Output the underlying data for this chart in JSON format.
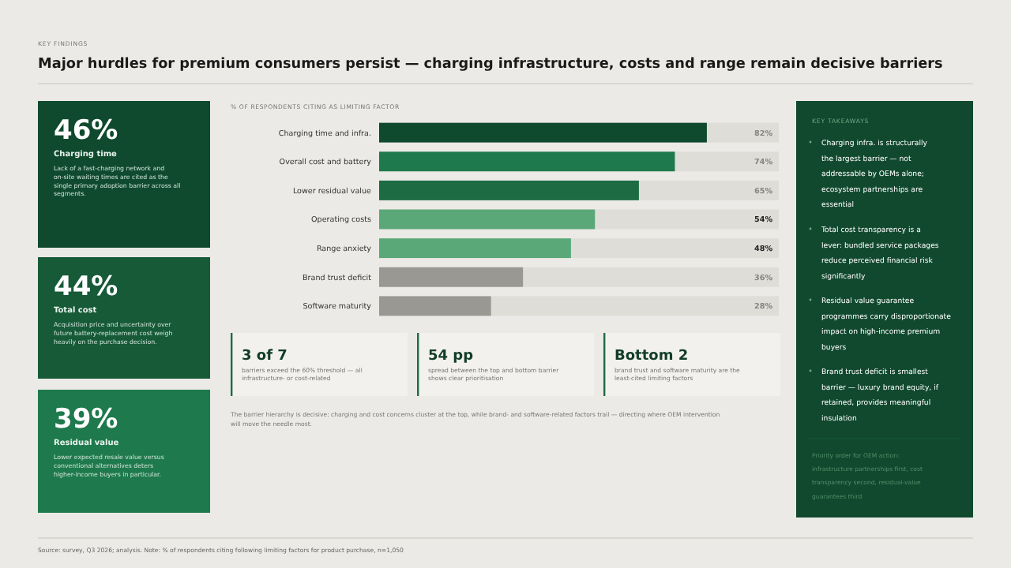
{
  "chart_data": {
    "type": "bar",
    "orientation": "horizontal",
    "title": "Major hurdles for premium consumers persist — charging infrastructure, costs and range remain decisive barriers",
    "xlabel": "% OF RESPONDENTS CITING AS LIMITING FACTOR",
    "categories": [
      "Charging time and infra.",
      "Overall cost and battery",
      "Lower residual value",
      "Operating costs",
      "Range anxiety",
      "Brand trust deficit",
      "Software maturity"
    ],
    "values": [
      82,
      74,
      65,
      54,
      48,
      36,
      28
    ],
    "colors": [
      "#0f4a2e",
      "#1e7a4c",
      "#1c6b42",
      "#5aa878",
      "#5aa878",
      "#9a9893",
      "#9a9893"
    ],
    "xlim": [
      0,
      100
    ],
    "data_labels": true,
    "value_labels": [
      "82%",
      "74%",
      "65%",
      "54%",
      "48%",
      "36%",
      "28%"
    ],
    "annotations": [
      "KEY FINDINGS",
      "46%",
      "Charging time",
      "Lack of a fast-charging network and on-site waiting times are cited as the single primary adoption barrier across all segments.",
      "44%",
      "Total cost",
      "Acquisition price and uncertainty over future battery-replacement cost weigh heavily on the purchase decision.",
      "39%",
      "Residual value",
      "Lower expected resale value versus conventional alternatives deters higher-income buyers in particular.",
      "3 of 7",
      "barriers exceed the 60% threshold — all infrastructure- or cost-related",
      "54 pp",
      "spread between the top and bottom barrier shows clear prioritisation",
      "Bottom 2",
      "brand trust and software maturity are the least-cited limiting factors",
      "The barrier hierarchy is decisive: charging and cost concerns cluster at the top, while brand- and software-related factors trail — directing where OEM intervention will move the needle most.",
      "KEY TAKEAWAYS",
      "Charging infra. is structurally the largest barrier — not addressable by OEMs alone; ecosystem partnerships are essential",
      "Total cost transparency is a lever: bundled service packages reduce perceived financial risk significantly",
      "Residual value guarantee programmes carry disproportionate impact on high-income premium buyers",
      "Brand trust deficit is smallest barrier — luxury brand equity, if retained, provides meaningful insulation",
      "Priority order for OEM action: infrastructure partnerships first, cost transparency second, residual-value guarantees third",
      "Source: survey, Q3 2026; analysis. Note: % of respondents citing following limiting factors for product purchase, n=1,050"
    ]
  }
}
